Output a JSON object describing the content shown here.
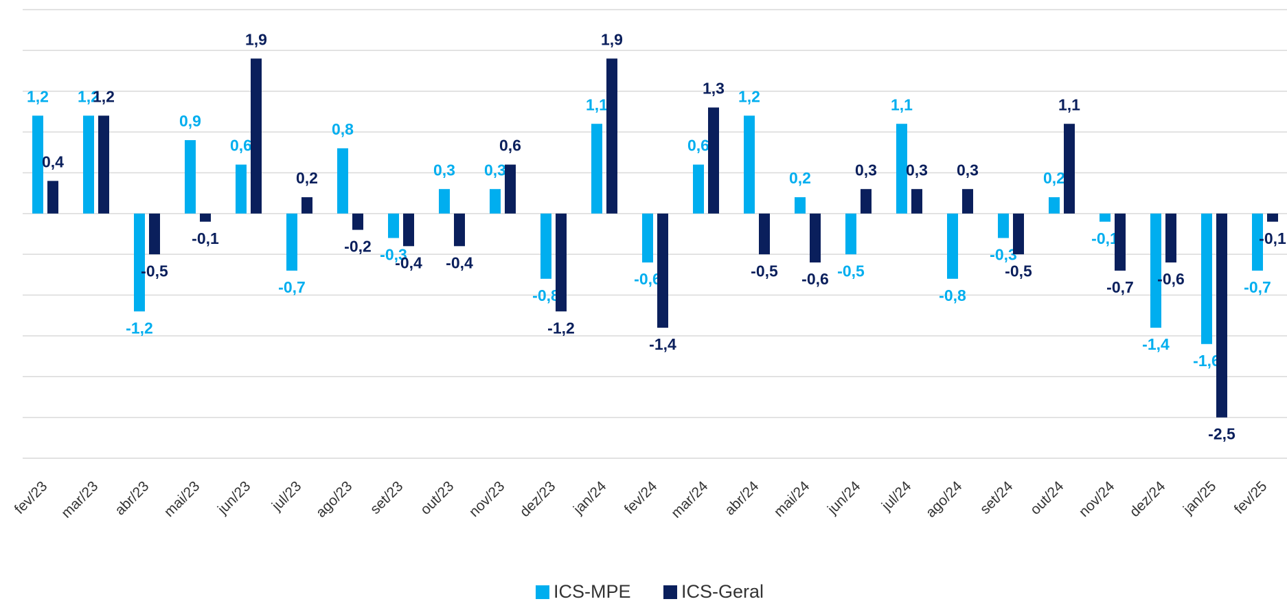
{
  "chart_data": {
    "type": "bar",
    "categories": [
      "fev/23",
      "mar/23",
      "abr/23",
      "mai/23",
      "jun/23",
      "jul/23",
      "ago/23",
      "set/23",
      "out/23",
      "nov/23",
      "dez/23",
      "jan/24",
      "fev/24",
      "mar/24",
      "abr/24",
      "mai/24",
      "jun/24",
      "jul/24",
      "ago/24",
      "set/24",
      "out/24",
      "nov/24",
      "dez/24",
      "jan/25",
      "fev/25"
    ],
    "series": [
      {
        "name": "ICS-MPE",
        "color": "#00aeef",
        "values": [
          1.2,
          1.2,
          -1.2,
          0.9,
          0.6,
          -0.7,
          0.8,
          -0.3,
          0.3,
          0.3,
          -0.8,
          1.1,
          -0.6,
          0.6,
          1.2,
          0.2,
          -0.5,
          1.1,
          -0.8,
          -0.3,
          0.2,
          -0.1,
          -1.4,
          -1.6,
          -0.7
        ],
        "value_labels": [
          "1,2",
          "1,2",
          "-1,2",
          "0,9",
          "0,6",
          "-0,7",
          "0,8",
          "-0,3",
          "0,3",
          "0,3",
          "-0,8",
          "1,1",
          "-0,6",
          "0,6",
          "1,2",
          "0,2",
          "-0,5",
          "1,1",
          "-0,8",
          "-0,3",
          "0,2",
          "-0,1",
          "-1,4",
          "-1,6",
          "-0,7"
        ]
      },
      {
        "name": "ICS-Geral",
        "color": "#0a1f5c",
        "values": [
          0.4,
          1.2,
          -0.5,
          -0.1,
          1.9,
          0.2,
          -0.2,
          -0.4,
          -0.4,
          0.6,
          -1.2,
          1.9,
          -1.4,
          1.3,
          -0.5,
          -0.6,
          0.3,
          0.3,
          0.3,
          -0.5,
          1.1,
          -0.7,
          -0.6,
          -2.5,
          -0.1
        ],
        "value_labels": [
          "0,4",
          "1,2",
          "-0,5",
          "-0,1",
          "1,9",
          "0,2",
          "-0,2",
          "-0,4",
          "-0,4",
          "0,6",
          "-1,2",
          "1,9",
          "-1,4",
          "1,3",
          "-0,5",
          "-0,6",
          "0,3",
          "0,3",
          "0,3",
          "-0,5",
          "1,1",
          "-0,7",
          "-0,6",
          "-2,5",
          "-0,1"
        ]
      }
    ],
    "ylim": [
      -3,
      2.5
    ],
    "yticks": [
      -3,
      -2.5,
      -2,
      -1.5,
      -1,
      -0.5,
      0,
      0.5,
      1,
      1.5,
      2,
      2.5
    ],
    "grid": true,
    "legend": "bottom"
  }
}
